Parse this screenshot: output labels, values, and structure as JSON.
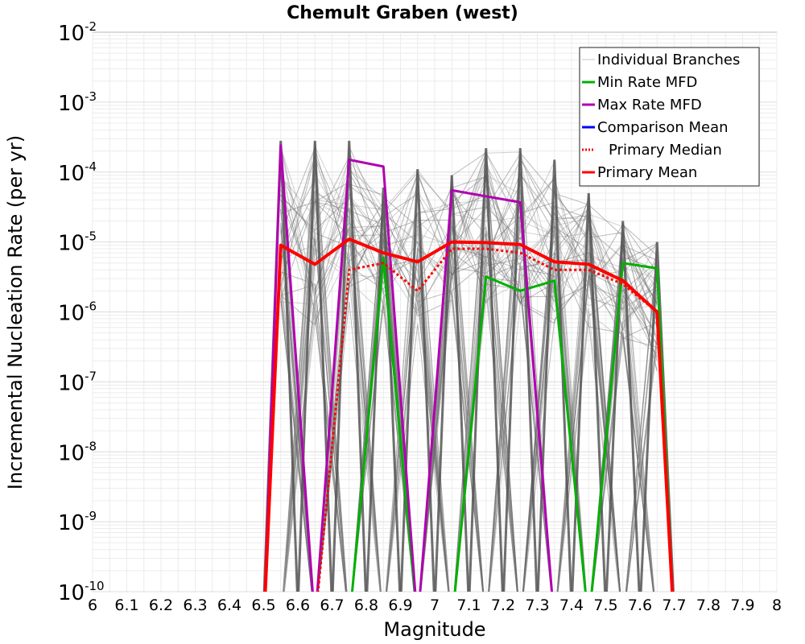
{
  "chart_data": {
    "type": "line",
    "title": "Chemult Graben (west)",
    "xlabel": "Magnitude",
    "ylabel": "Incremental Nucleation Rate (per yr)",
    "xlim": [
      6,
      8
    ],
    "ylim": [
      1e-10,
      0.01
    ],
    "yscale": "log",
    "grid": true,
    "legend_position": "top-right",
    "x_ticks": [
      "6",
      "6.1",
      "6.2",
      "6.3",
      "6.4",
      "6.5",
      "6.6",
      "6.7",
      "6.8",
      "6.9",
      "7",
      "7.1",
      "7.2",
      "7.3",
      "7.4",
      "7.5",
      "7.6",
      "7.7",
      "7.8",
      "7.9",
      "8"
    ],
    "y_ticks": [
      {
        "base": "10",
        "exp": "-10"
      },
      {
        "base": "10",
        "exp": "-9"
      },
      {
        "base": "10",
        "exp": "-8"
      },
      {
        "base": "10",
        "exp": "-7"
      },
      {
        "base": "10",
        "exp": "-6"
      },
      {
        "base": "10",
        "exp": "-5"
      },
      {
        "base": "10",
        "exp": "-4"
      },
      {
        "base": "10",
        "exp": "-3"
      },
      {
        "base": "10",
        "exp": "-2"
      }
    ],
    "legend": [
      {
        "label": "Individual Branches",
        "color": "#c8c8c8",
        "style": "solid"
      },
      {
        "label": "Min Rate MFD",
        "color": "#00b000",
        "style": "solid"
      },
      {
        "label": "Max Rate MFD",
        "color": "#b000b0",
        "style": "solid"
      },
      {
        "label": "Comparison Mean",
        "color": "#0000ff",
        "style": "solid"
      },
      {
        "label": "Primary Median",
        "color": "#ff0000",
        "style": "dotted"
      },
      {
        "label": "Primary Mean",
        "color": "#ff0000",
        "style": "solid"
      }
    ],
    "x": [
      6.55,
      6.65,
      6.75,
      6.85,
      6.95,
      7.05,
      7.15,
      7.25,
      7.35,
      7.45,
      7.55,
      7.65
    ],
    "series": [
      {
        "name": "Primary Mean",
        "color": "#ff0000",
        "style": "solid",
        "values": [
          9e-06,
          4.8e-06,
          1.1e-05,
          7e-06,
          5.2e-06,
          1e-05,
          9.8e-06,
          9.2e-06,
          5.2e-06,
          4.8e-06,
          2.8e-06,
          1e-06
        ]
      },
      {
        "name": "Primary Median",
        "color": "#ff0000",
        "style": "dotted",
        "values": [
          null,
          null,
          4e-06,
          5e-06,
          2e-06,
          8e-06,
          8e-06,
          7e-06,
          4e-06,
          4e-06,
          2.5e-06,
          1e-06
        ]
      },
      {
        "name": "Min Rate MFD",
        "color": "#00b000",
        "style": "solid",
        "values": [
          null,
          null,
          null,
          6e-06,
          null,
          null,
          3.2e-06,
          2e-06,
          2.8e-06,
          null,
          5e-06,
          4.2e-06
        ]
      },
      {
        "name": "Max Rate MFD",
        "color": "#b000b0",
        "style": "solid",
        "values": [
          0.00024,
          null,
          0.00015,
          0.00012,
          null,
          5.5e-05,
          4.5e-05,
          3.7e-05,
          null,
          null,
          null,
          null
        ]
      },
      {
        "name": "Individual Branches (max envelope)",
        "color": "#555555",
        "style": "solid",
        "values": [
          0.00028,
          0.00028,
          0.00028,
          6e-05,
          0.00011,
          9e-05,
          0.00022,
          0.00022,
          0.00015,
          5e-05,
          2e-05,
          1e-05
        ]
      }
    ]
  }
}
